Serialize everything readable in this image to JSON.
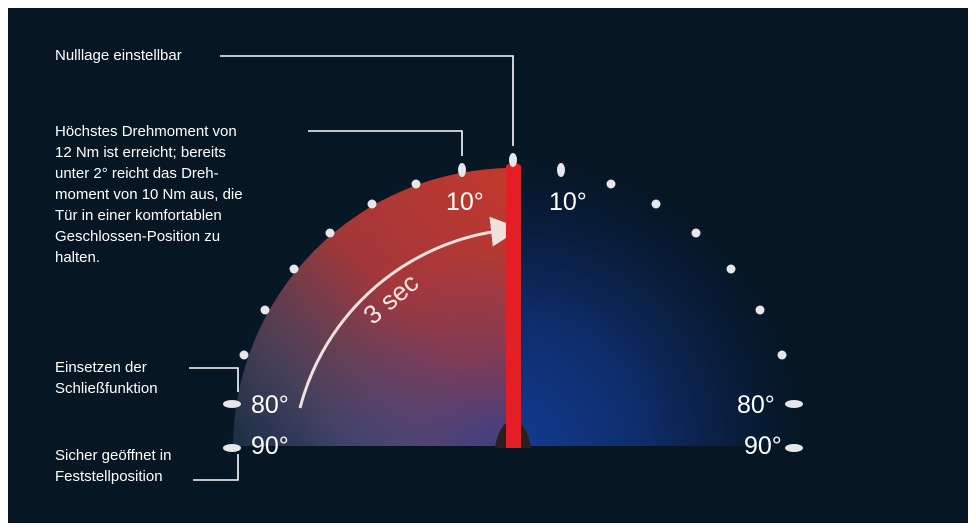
{
  "labels": {
    "zero_position": "Nulllage einstellbar",
    "max_torque_lines": [
      "Höchstes Drehmoment von",
      "12 Nm ist erreicht; bereits",
      "unter 2° reicht das Dreh-",
      "moment von 10 Nm aus, die",
      "Tür in einer komfortablen",
      "Geschlossen-Position zu",
      "halten."
    ],
    "closing_function_lines": [
      "Einsetzen der",
      "Schließfunktion"
    ],
    "safe_open_lines": [
      "Sicher geöffnet in",
      "Feststellposition"
    ]
  },
  "angles": {
    "left_10": "10°",
    "right_10": "10°",
    "left_80": "80°",
    "right_80": "80°",
    "left_90": "90°",
    "right_90": "90°"
  },
  "timing_label": "3 sec",
  "colors": {
    "background": "#061622",
    "door_bar": "#e31e24",
    "closing_area": "#c4392c",
    "open_area": "#123d94",
    "markers": "#e5e7ea",
    "text": "#ffffff"
  }
}
